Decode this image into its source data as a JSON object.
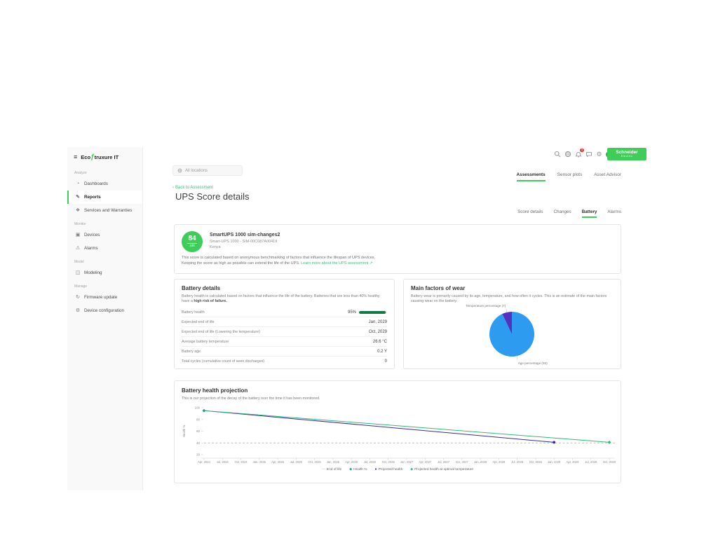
{
  "brand": {
    "logo_prefix": "Eco",
    "logo_suffix": "truxure IT",
    "schneider_line1": "Schneider",
    "schneider_line2": "Electric",
    "accent_green": "#3dcd58"
  },
  "topbar": {
    "location_placeholder": "All locations",
    "notification_count": "3"
  },
  "sidebar": {
    "sections": [
      {
        "label": "Analyze",
        "items": [
          {
            "label": "Dashboards",
            "icon": "dashboards-icon"
          },
          {
            "label": "Reports",
            "icon": "reports-icon",
            "active": true
          },
          {
            "label": "Services and Warranties",
            "icon": "services-warranties-icon"
          }
        ]
      },
      {
        "label": "Monitor",
        "items": [
          {
            "label": "Devices",
            "icon": "devices-icon"
          },
          {
            "label": "Alarms",
            "icon": "alarms-icon"
          }
        ]
      },
      {
        "label": "Model",
        "items": [
          {
            "label": "Modeling",
            "icon": "modeling-icon"
          }
        ]
      },
      {
        "label": "Manage",
        "items": [
          {
            "label": "Firmware update",
            "icon": "firmware-update-icon"
          },
          {
            "label": "Device configuration",
            "icon": "device-configuration-icon"
          }
        ]
      }
    ]
  },
  "page": {
    "tabs": [
      {
        "label": "Assessments",
        "active": true
      },
      {
        "label": "Sensor plots"
      },
      {
        "label": "Asset Advisor"
      }
    ],
    "back_link": "Back to Assessment",
    "title": "UPS Score details",
    "subtabs": [
      {
        "label": "Score details"
      },
      {
        "label": "Changes"
      },
      {
        "label": "Battery",
        "active": true
      },
      {
        "label": "Alarms"
      }
    ]
  },
  "score_card": {
    "score": "84",
    "score_max": "100",
    "device_name": "SmartUPS 1000 sim-changes2",
    "device_model": "Smart-UPS 1000 - SIM-00C087A00419",
    "device_location": "Kenya",
    "description_line1": "This score is calculated based on anonymous benchmarking of factors that influence the lifespan of UPS devices.",
    "description_line2": "Keeping the score as high as possible can extend the life of the UPS.",
    "learn_more_link": "Learn more about the UPS assessment"
  },
  "battery_details": {
    "title": "Battery details",
    "description": "Battery health is calculated based on factors that influence the life of the battery. Batteries that are less than 40% healthy have a ",
    "description_bold": "high risk of failure.",
    "rows": [
      {
        "label": "Battery health",
        "value": "95%",
        "bar": 95
      },
      {
        "label": "Expected end of life",
        "value": "Jan, 2029"
      },
      {
        "label": "Expected end of life (Lowering the temperature)",
        "value": "Oct, 2029"
      },
      {
        "label": "Average battery temperature",
        "value": "26.6 °C"
      },
      {
        "label": "Battery age",
        "value": "0.2 Y"
      },
      {
        "label": "Total cycles (cumulative count of seen discharges)",
        "value": "0"
      }
    ]
  },
  "wear_card": {
    "title": "Main factors of wear",
    "description": "Battery wear is primarily caused by its age, temperature, and how often it cycles. This is an estimate of the main factors causing wear on the battery."
  },
  "projection_card": {
    "title": "Battery health projection",
    "description": "This is our projection of the decay of the battery over the time it has been monitored."
  },
  "chart_data": [
    {
      "type": "pie",
      "title": "Main factors of wear",
      "slices": [
        {
          "label": "Age percentage (93)",
          "value": 93,
          "color": "#2D9CF0"
        },
        {
          "label": "Temperature percentage (7)",
          "value": 7,
          "color": "#5133BF"
        }
      ]
    },
    {
      "type": "line",
      "title": "Battery health projection",
      "xlabel": "",
      "ylabel": "Health %",
      "ylim": [
        20,
        100
      ],
      "yticks": [
        100,
        80,
        60,
        40,
        20
      ],
      "x": [
        "Apr, 2024",
        "Jul, 2024",
        "Oct, 2024",
        "Jan, 2025",
        "Apr, 2025",
        "Jul, 2025",
        "Oct, 2025",
        "Jan, 2026",
        "Apr, 2026",
        "Jul, 2026",
        "Oct, 2026",
        "Jan, 2027",
        "Apr, 2027",
        "Jul, 2027",
        "Oct, 2027",
        "Jan, 2028",
        "Apr, 2028",
        "Jul, 2028",
        "Oct, 2028",
        "Jan, 2029",
        "Apr, 2029",
        "Jul, 2029",
        "Oct, 2029"
      ],
      "series": [
        {
          "name": "End of life",
          "type": "hline",
          "y": 40,
          "color": "#ABABAB",
          "dash": true
        },
        {
          "name": "Health %",
          "type": "points",
          "marker": "diamond",
          "color": "#14A38B",
          "points": [
            {
              "xi": 0,
              "y": 95
            }
          ]
        },
        {
          "name": "Projected health",
          "type": "line",
          "marker": "circle",
          "color": "#332D9E",
          "points": [
            {
              "xi": 0,
              "y": 95
            },
            {
              "xi": 19,
              "y": 41
            }
          ]
        },
        {
          "name": "Projected health at optimal temperature",
          "type": "line",
          "marker": "diamond",
          "color": "#35B57A",
          "points": [
            {
              "xi": 0,
              "y": 95
            },
            {
              "xi": 22,
              "y": 41
            }
          ]
        }
      ],
      "legend_position": "bottom",
      "grid": false
    }
  ]
}
